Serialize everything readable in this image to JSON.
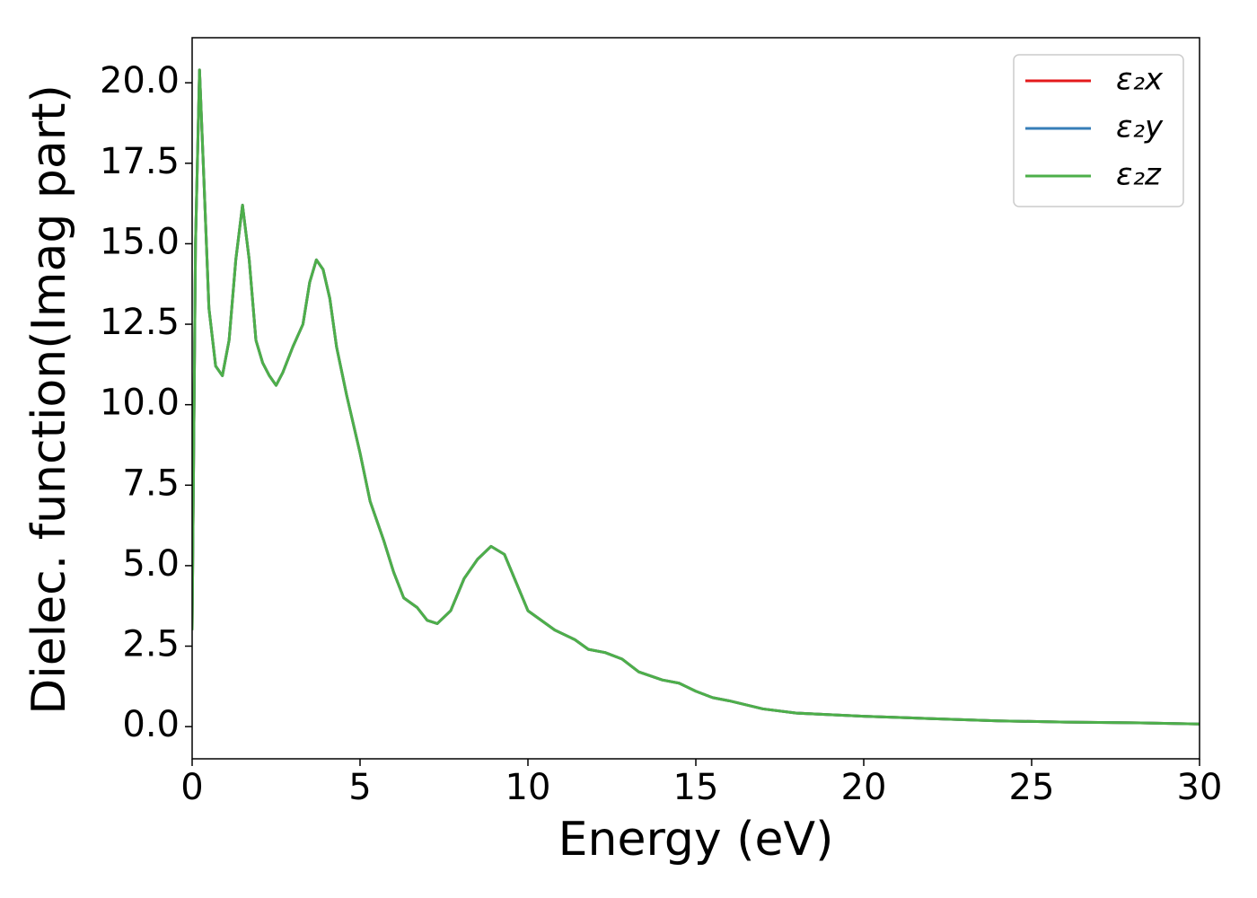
{
  "chart_data": {
    "type": "line",
    "xlabel": "Energy (eV)",
    "ylabel": "Dielec. function(Imag part)",
    "x": [
      0.0,
      0.1,
      0.22,
      0.35,
      0.5,
      0.7,
      0.9,
      1.1,
      1.3,
      1.5,
      1.7,
      1.9,
      2.1,
      2.3,
      2.5,
      2.7,
      3.0,
      3.3,
      3.5,
      3.7,
      3.9,
      4.1,
      4.3,
      4.6,
      5.0,
      5.3,
      5.7,
      6.0,
      6.3,
      6.7,
      7.0,
      7.3,
      7.7,
      8.1,
      8.5,
      8.9,
      9.3,
      9.6,
      10.0,
      10.4,
      10.8,
      11.4,
      11.8,
      12.3,
      12.8,
      13.3,
      14.0,
      14.5,
      15.0,
      15.5,
      16.0,
      17.0,
      18.0,
      19.0,
      20.0,
      22.0,
      24.0,
      26.0,
      28.0,
      30.0
    ],
    "series": [
      {
        "name": "ε₂x",
        "color": "#e41a1c",
        "values": [
          3.0,
          15,
          20.4,
          17,
          13,
          11.2,
          10.9,
          12,
          14.5,
          16.2,
          14.5,
          12,
          11.3,
          10.9,
          10.6,
          11,
          11.8,
          12.5,
          13.8,
          14.5,
          14.2,
          13.3,
          11.8,
          10.3,
          8.5,
          7,
          5.8,
          4.8,
          4.0,
          3.7,
          3.3,
          3.2,
          3.6,
          4.6,
          5.2,
          5.6,
          5.35,
          4.6,
          3.6,
          3.3,
          3.0,
          2.7,
          2.4,
          2.3,
          2.1,
          1.7,
          1.45,
          1.35,
          1.1,
          0.9,
          0.8,
          0.55,
          0.42,
          0.37,
          0.32,
          0.25,
          0.18,
          0.14,
          0.12,
          0.08
        ]
      },
      {
        "name": "ε₂y",
        "color": "#377eb8",
        "values": [
          3.0,
          15,
          20.4,
          17,
          13,
          11.2,
          10.9,
          12,
          14.5,
          16.2,
          14.5,
          12,
          11.3,
          10.9,
          10.6,
          11,
          11.8,
          12.5,
          13.8,
          14.5,
          14.2,
          13.3,
          11.8,
          10.3,
          8.5,
          7,
          5.8,
          4.8,
          4.0,
          3.7,
          3.3,
          3.2,
          3.6,
          4.6,
          5.2,
          5.6,
          5.35,
          4.6,
          3.6,
          3.3,
          3.0,
          2.7,
          2.4,
          2.3,
          2.1,
          1.7,
          1.45,
          1.35,
          1.1,
          0.9,
          0.8,
          0.55,
          0.42,
          0.37,
          0.32,
          0.25,
          0.18,
          0.14,
          0.12,
          0.08
        ]
      },
      {
        "name": "ε₂z",
        "color": "#4daf4a",
        "values": [
          3.0,
          15,
          20.4,
          17,
          13,
          11.2,
          10.9,
          12,
          14.5,
          16.2,
          14.5,
          12,
          11.3,
          10.9,
          10.6,
          11,
          11.8,
          12.5,
          13.8,
          14.5,
          14.2,
          13.3,
          11.8,
          10.3,
          8.5,
          7,
          5.8,
          4.8,
          4.0,
          3.7,
          3.3,
          3.2,
          3.6,
          4.6,
          5.2,
          5.6,
          5.35,
          4.6,
          3.6,
          3.3,
          3.0,
          2.7,
          2.4,
          2.3,
          2.1,
          1.7,
          1.45,
          1.35,
          1.1,
          0.9,
          0.8,
          0.55,
          0.42,
          0.37,
          0.32,
          0.25,
          0.18,
          0.14,
          0.12,
          0.08
        ]
      }
    ],
    "xlim": [
      0,
      30
    ],
    "ylim": [
      -1.0,
      21.4
    ],
    "xticks": [
      0,
      5,
      10,
      15,
      20,
      25,
      30
    ],
    "yticks": [
      {
        "value": 0,
        "label": "0.0"
      },
      2.5,
      {
        "value": 5,
        "label": "5.0"
      },
      7.5,
      {
        "value": 10,
        "label": "10.0"
      },
      12.5,
      {
        "value": 15,
        "label": "15.0"
      },
      17.5,
      {
        "value": 20,
        "label": "20.0"
      }
    ],
    "legend": "upper right",
    "grid": false
  }
}
